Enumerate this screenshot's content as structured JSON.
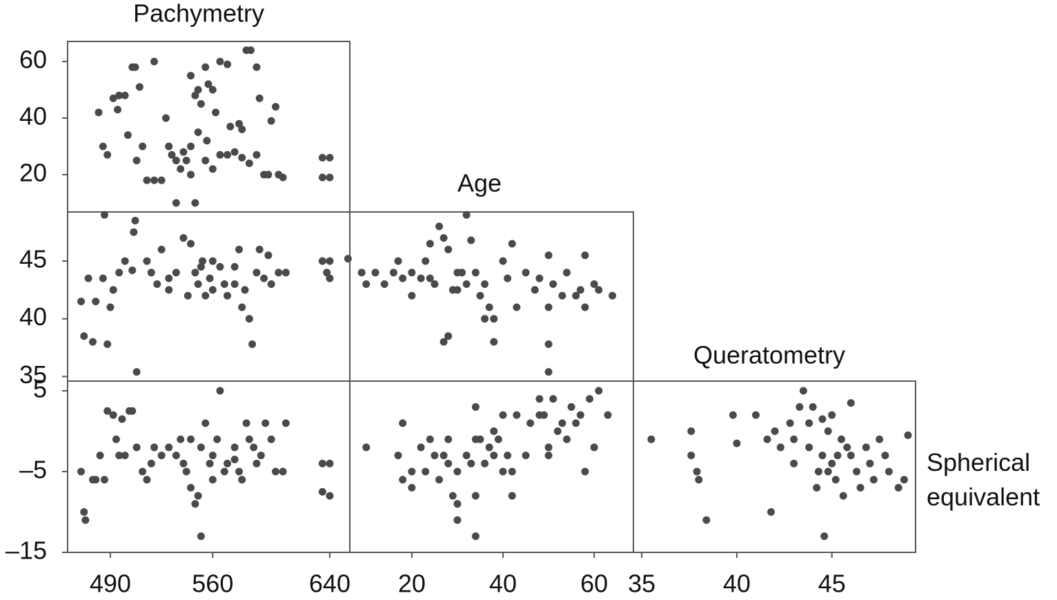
{
  "variables": [
    "Pachymetry",
    "Age",
    "Queratometry",
    "Spherical equivalent"
  ],
  "chart_data": [
    {
      "type": "scatter",
      "color": "#4a4a4a",
      "xlim": [
        460.8,
        653.7
      ],
      "ylim": [
        6.8,
        67.1
      ],
      "yticks": [
        20,
        40,
        60
      ],
      "x": [
        482,
        485,
        488,
        492,
        496,
        500,
        495,
        505,
        507,
        510,
        502,
        508,
        512,
        515,
        520,
        525,
        528,
        530,
        532,
        535,
        538,
        540,
        542,
        545,
        548,
        535,
        545,
        548,
        550,
        552,
        555,
        557,
        560,
        562,
        565,
        570,
        572,
        575,
        578,
        580,
        583,
        586,
        590,
        592,
        595,
        598,
        600,
        603,
        605,
        608,
        635,
        640,
        635,
        640,
        520,
        565,
        555,
        545,
        550,
        560,
        570,
        580,
        590,
        585,
        556
      ],
      "y": [
        42,
        30,
        27,
        47,
        48,
        48,
        43,
        58,
        58,
        51,
        34,
        25,
        30,
        18,
        18,
        18,
        40,
        30,
        27,
        25,
        22,
        28,
        25,
        20,
        10,
        10,
        55,
        48,
        50,
        45,
        58,
        52,
        50,
        42,
        60,
        59,
        37,
        28,
        38,
        36,
        64,
        64,
        58,
        47,
        20,
        20,
        39,
        44,
        20,
        19,
        26,
        26,
        19,
        19,
        60,
        27,
        25,
        30,
        35,
        22,
        27,
        26,
        27,
        24,
        32
      ]
    },
    {
      "type": "scatter",
      "color": "#4a4a4a",
      "xlim": [
        460.8,
        653.7
      ],
      "ylim": [
        34.6,
        49.25
      ],
      "yticks": [
        35,
        40,
        45
      ],
      "x": [
        470,
        472,
        475,
        478,
        480,
        485,
        488,
        490,
        492,
        486,
        496,
        500,
        505,
        506,
        507,
        508,
        515,
        518,
        522,
        525,
        530,
        535,
        540,
        545,
        548,
        550,
        553,
        555,
        558,
        560,
        565,
        570,
        575,
        578,
        580,
        582,
        585,
        587,
        590,
        592,
        595,
        598,
        600,
        605,
        610,
        635,
        640,
        638,
        640,
        543,
        552,
        560,
        568,
        530,
        575
      ],
      "y": [
        41.5,
        38.5,
        43.5,
        38,
        41.5,
        43.5,
        37.8,
        41,
        42.5,
        49,
        44,
        45,
        44.2,
        47.5,
        48.5,
        35.4,
        45,
        44,
        43,
        46,
        43.5,
        44,
        47,
        46.5,
        44,
        43,
        45,
        42,
        43.5,
        42.5,
        44.5,
        42,
        43,
        46,
        41,
        42.5,
        40,
        37.8,
        44,
        46,
        43.5,
        45.5,
        43,
        44,
        44,
        45,
        45,
        44,
        43.5,
        42,
        44.5,
        45,
        43,
        42.5,
        44.5
      ]
    },
    {
      "type": "scatter",
      "color": "#4a4a4a",
      "xlim": [
        460.8,
        653.7
      ],
      "ylim": [
        -15,
        6.2
      ],
      "xticks": [
        490,
        560,
        640
      ],
      "yticks": [
        {
          "value": -15,
          "label": "–15"
        },
        {
          "value": -5,
          "label": "–5"
        },
        5
      ],
      "x": [
        470,
        472,
        473,
        478,
        480,
        483,
        486,
        488,
        492,
        494,
        496,
        498,
        500,
        503,
        505,
        508,
        512,
        515,
        518,
        520,
        525,
        530,
        535,
        540,
        542,
        545,
        548,
        550,
        552,
        555,
        558,
        560,
        563,
        565,
        570,
        575,
        578,
        580,
        583,
        585,
        588,
        590,
        593,
        596,
        600,
        603,
        608,
        610,
        635,
        640,
        635,
        640,
        552,
        545,
        538,
        560,
        568,
        575
      ],
      "y": [
        -5,
        -10,
        -11,
        -6,
        -6,
        -3,
        -6,
        2.5,
        2,
        -1,
        -3,
        1.5,
        -3,
        2.5,
        2.5,
        -2,
        -5,
        -6,
        -4,
        -2,
        -3,
        -2,
        -3,
        -4,
        -5,
        -7,
        -9,
        -8,
        -2,
        1,
        -4,
        -3,
        -1,
        5,
        -4,
        -2,
        -5,
        -6,
        1,
        -1,
        -2,
        -4,
        -3,
        1,
        -1,
        -5,
        -5,
        1,
        -4,
        -4,
        -7.5,
        -8,
        -13,
        -1,
        -1,
        -6,
        -5,
        -3.5
      ]
    },
    {
      "type": "scatter",
      "color": "#4a4a4a",
      "xlim": [
        6.4,
        68.6
      ],
      "ylim": [
        34.6,
        49.25
      ],
      "x": [
        6,
        9,
        10,
        12,
        14,
        16,
        17,
        18,
        20,
        22,
        23,
        24,
        26,
        27,
        28,
        30,
        31,
        33,
        32,
        25,
        27,
        28,
        30,
        32,
        34,
        35,
        37,
        38,
        38,
        40,
        41,
        42,
        43,
        45,
        47,
        48,
        50,
        50,
        50,
        50,
        51,
        53,
        54,
        56,
        57,
        58,
        58,
        60,
        61,
        64,
        36,
        36,
        20,
        24,
        29
      ],
      "y": [
        45.2,
        44,
        43,
        44,
        43,
        44,
        45,
        43.5,
        42,
        43.5,
        45,
        46.5,
        48,
        47,
        46,
        42.5,
        44,
        46.8,
        49,
        43,
        38,
        38.5,
        44,
        43,
        44,
        42,
        41,
        40,
        38,
        45,
        43.5,
        46.5,
        41,
        44,
        42.5,
        43.5,
        41,
        45.5,
        37.8,
        35.4,
        43,
        42,
        44,
        42,
        42.5,
        41,
        45.5,
        43,
        42.5,
        42,
        40,
        43,
        44,
        43.5,
        42.5
      ]
    },
    {
      "type": "scatter",
      "color": "#4a4a4a",
      "xlim": [
        6.4,
        68.6
      ],
      "ylim": [
        -15,
        6.2
      ],
      "xticks": [
        20,
        40,
        60
      ],
      "x": [
        10,
        17,
        18,
        18,
        20,
        20,
        22,
        23,
        24,
        25,
        26,
        27,
        28,
        28,
        29,
        30,
        30,
        30,
        32,
        33,
        34,
        34,
        34,
        34,
        35,
        36,
        37,
        38,
        38,
        39,
        40,
        40,
        41,
        42,
        42,
        43,
        45,
        46,
        48,
        48,
        49,
        50,
        50,
        51,
        52,
        53,
        54,
        56,
        57,
        58,
        59,
        60,
        61,
        63,
        55
      ],
      "y": [
        -2,
        -3,
        1,
        -6,
        -5,
        -7,
        -2,
        -5,
        -1,
        -3,
        -6,
        -3,
        -1,
        -4,
        -8,
        -5,
        -9,
        -11,
        -3,
        -4,
        -13,
        -1,
        -8,
        3,
        -1,
        -4,
        -2,
        -3,
        0,
        -1,
        2,
        -5,
        -3,
        -5,
        -8,
        2,
        -3,
        1,
        2,
        4,
        2,
        -2,
        -3,
        4,
        0,
        1,
        -1,
        1,
        2,
        -5,
        4,
        -2,
        5,
        2,
        3
      ]
    },
    {
      "type": "scatter",
      "color": "#4a4a4a",
      "xlim": [
        34.56,
        49.4
      ],
      "ylim": [
        -15,
        6.2
      ],
      "xticks": [
        35,
        40,
        45
      ],
      "x": [
        35.5,
        37.6,
        37.6,
        37.9,
        38,
        38.4,
        39.8,
        40,
        41,
        41.6,
        41.8,
        42,
        42.3,
        42.8,
        43,
        43.3,
        43.5,
        43.8,
        44,
        44.2,
        44.3,
        44.5,
        44.6,
        44.8,
        45,
        45,
        45.2,
        45.5,
        45.6,
        45.8,
        46,
        46,
        46.3,
        46.5,
        46.8,
        47,
        47.2,
        47.5,
        47.8,
        48,
        48.5,
        48.8,
        49,
        43.8,
        44.8,
        45.3,
        44.5,
        43
      ],
      "y": [
        -1,
        0,
        -3,
        -5,
        -6,
        -11,
        2,
        -1.5,
        2,
        -1,
        -10,
        0,
        -2,
        1,
        -4,
        3,
        5,
        -2,
        3,
        -7,
        -5,
        -3,
        -13,
        0,
        -4,
        2,
        -6,
        -1,
        -8,
        -2,
        -3,
        3.5,
        -5,
        -7,
        -2,
        -4,
        -6,
        -1,
        -3,
        -5,
        -7,
        -6,
        -0.5,
        1,
        -5,
        -3,
        1.5,
        -1
      ]
    }
  ]
}
